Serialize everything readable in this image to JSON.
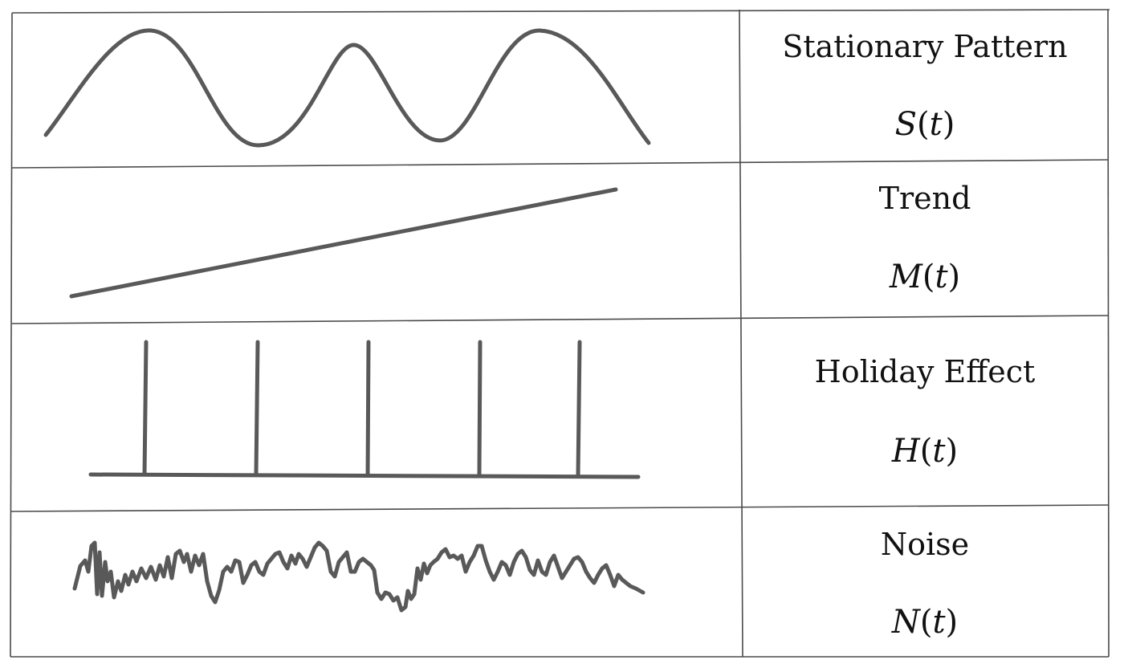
{
  "colors": {
    "stroke": "#595959",
    "grid": "#4a4a4a",
    "text": "#111111"
  },
  "rows": [
    {
      "id": "stationary",
      "name": "Stationary Pattern",
      "symbol_letter": "S",
      "symbol_open": "(",
      "symbol_arg": "t",
      "symbol_close": ")",
      "icon": "sine-wave-icon"
    },
    {
      "id": "trend",
      "name": "Trend",
      "symbol_letter": "M",
      "symbol_open": "(",
      "symbol_arg": "t",
      "symbol_close": ")",
      "icon": "trend-line-icon"
    },
    {
      "id": "holiday",
      "name": "Holiday Effect",
      "symbol_letter": "H",
      "symbol_open": "(",
      "symbol_arg": "t",
      "symbol_close": ")",
      "icon": "impulse-spikes-icon"
    },
    {
      "id": "noise",
      "name": "Noise",
      "symbol_letter": "N",
      "symbol_open": "(",
      "symbol_arg": "t",
      "symbol_close": ")",
      "icon": "noise-wave-icon"
    }
  ]
}
